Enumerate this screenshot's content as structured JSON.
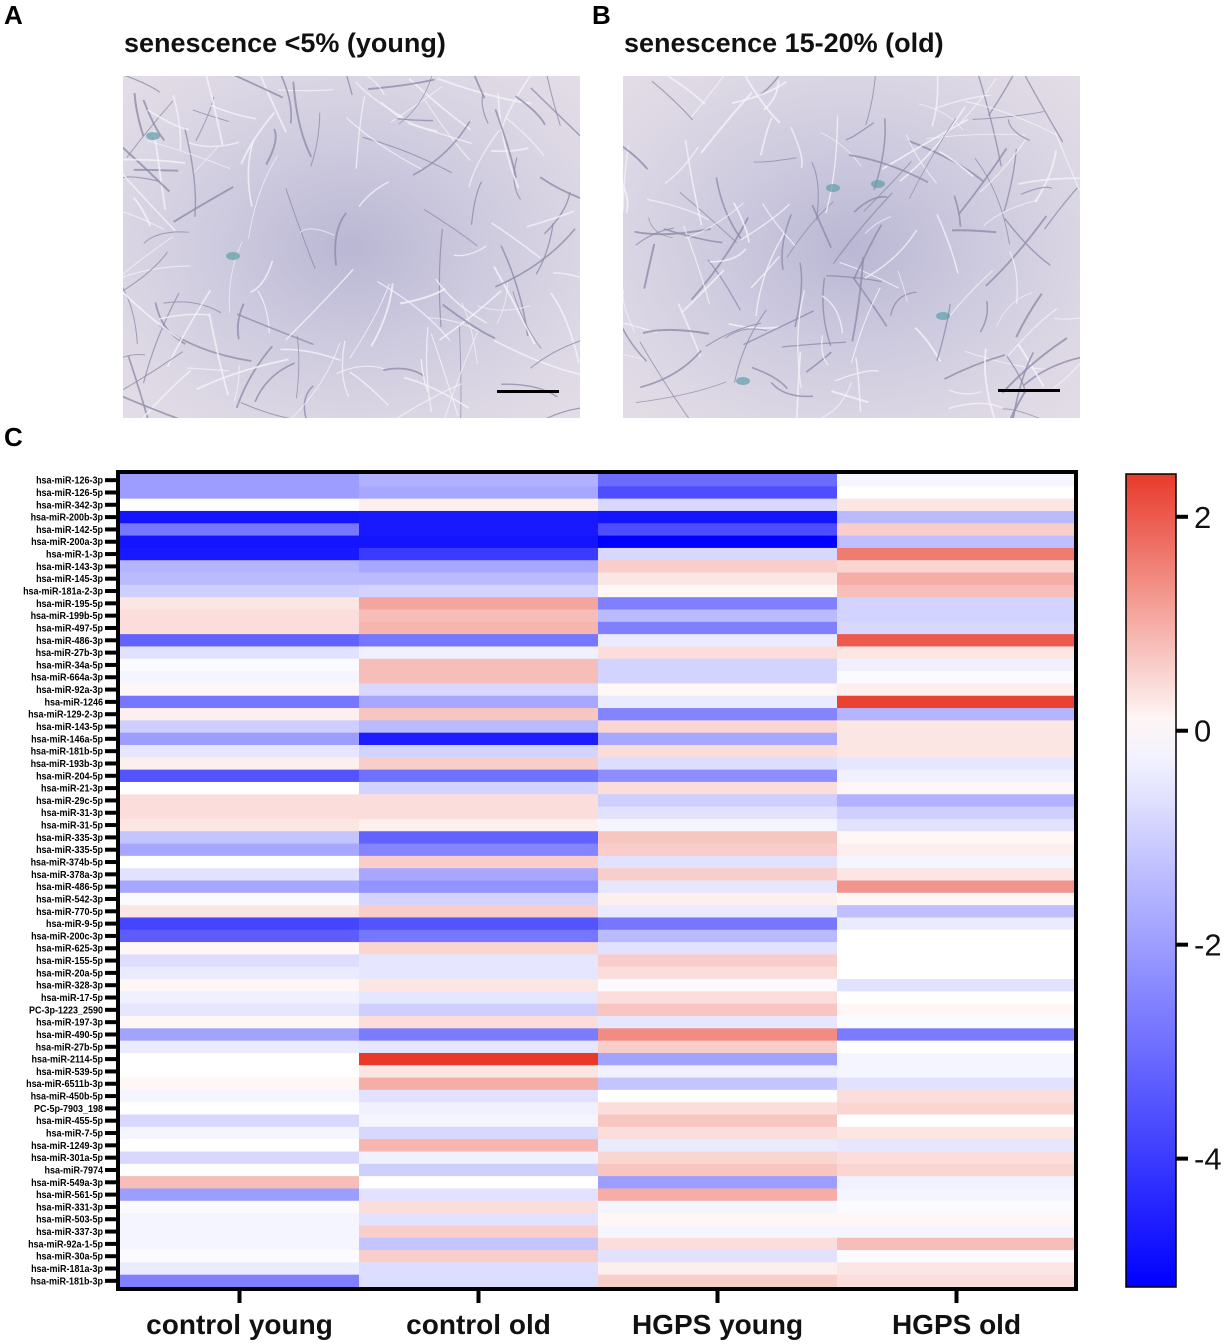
{
  "panels": {
    "a": {
      "letter": "A",
      "title": "senescence <5% (young)"
    },
    "b": {
      "letter": "B",
      "title": "senescence 15-20% (old)"
    },
    "c": {
      "letter": "C"
    }
  },
  "chart_data": {
    "type": "heatmap",
    "columns": [
      "control young",
      "control old",
      "HGPS young",
      "HGPS old"
    ],
    "rows": [
      "hsa-miR-126-3p",
      "hsa-miR-126-5p",
      "hsa-miR-342-3p",
      "hsa-miR-200b-3p",
      "hsa-miR-142-5p",
      "hsa-miR-200a-3p",
      "hsa-miR-1-3p",
      "hsa-miR-143-3p",
      "hsa-miR-145-3p",
      "hsa-miR-181a-2-3p",
      "hsa-miR-195-5p",
      "hsa-miR-199b-5p",
      "hsa-miR-497-5p",
      "hsa-miR-486-3p",
      "hsa-miR-27b-3p",
      "hsa-miR-34a-5p",
      "hsa-miR-664a-3p",
      "hsa-miR-92a-3p",
      "hsa-miR-1246",
      "hsa-miR-129-2-3p",
      "hsa-miR-143-5p",
      "hsa-miR-146a-5p",
      "hsa-miR-181b-5p",
      "hsa-miR-193b-3p",
      "hsa-miR-204-5p",
      "hsa-miR-21-3p",
      "hsa-miR-29c-5p",
      "hsa-miR-31-3p",
      "hsa-miR-31-5p",
      "hsa-miR-335-3p",
      "hsa-miR-335-5p",
      "hsa-miR-374b-5p",
      "hsa-miR-378a-3p",
      "hsa-miR-486-5p",
      "hsa-miR-542-3p",
      "hsa-miR-770-5p",
      "hsa-miR-9-5p",
      "hsa-miR-200c-3p",
      "hsa-miR-625-3p",
      "hsa-miR-155-5p",
      "hsa-miR-20a-5p",
      "hsa-miR-328-3p",
      "hsa-miR-17-5p",
      "PC-3p-1223_2590",
      "hsa-miR-197-3p",
      "hsa-miR-490-5p",
      "hsa-miR-27b-5p",
      "hsa-miR-2114-5p",
      "hsa-miR-539-5p",
      "hsa-miR-6511b-3p",
      "hsa-miR-450b-5p",
      "PC-5p-7903_198",
      "hsa-miR-455-5p",
      "hsa-miR-7-5p",
      "hsa-miR-1249-3p",
      "hsa-miR-301a-5p",
      "hsa-miR-7974",
      "hsa-miR-549a-3p",
      "hsa-miR-561-5p",
      "hsa-miR-331-3p",
      "hsa-miR-503-5p",
      "hsa-miR-337-3p",
      "hsa-miR-92a-1-5p",
      "hsa-miR-30a-5p",
      "hsa-miR-181a-3p",
      "hsa-miR-181b-3p"
    ],
    "values": [
      [
        -2.0,
        -1.6,
        -3.0,
        -0.2
      ],
      [
        -2.0,
        -1.8,
        -3.6,
        0
      ],
      [
        0,
        0.2,
        -0.8,
        0.3
      ],
      [
        -4.8,
        -4.7,
        -4.8,
        -1.4
      ],
      [
        -2.8,
        -4.7,
        -3.6,
        0.6
      ],
      [
        -4.8,
        -4.8,
        -5.2,
        -1.3
      ],
      [
        -4.7,
        -4.0,
        -0.8,
        1.6
      ],
      [
        -1.5,
        -1.8,
        0.6,
        0.5
      ],
      [
        -1.4,
        -1.4,
        0.3,
        1.0
      ],
      [
        -1.0,
        -0.9,
        0.1,
        0.8
      ],
      [
        0.3,
        1.1,
        -2.6,
        -0.9
      ],
      [
        0.4,
        0.8,
        -1.4,
        -0.9
      ],
      [
        0.4,
        0.9,
        -2.6,
        -0.8
      ],
      [
        -3.2,
        -2.8,
        -0.4,
        2.0
      ],
      [
        -0.6,
        -0.3,
        0.4,
        0.3
      ],
      [
        -0.1,
        0.8,
        -0.9,
        -0.3
      ],
      [
        -0.2,
        0.8,
        -0.9,
        -0.1
      ],
      [
        0.1,
        -0.8,
        0.1,
        0.2
      ],
      [
        -2.8,
        -1.8,
        -0.4,
        2.3
      ],
      [
        0.2,
        0.7,
        -2.5,
        -1.5
      ],
      [
        -1.0,
        -1.4,
        0.5,
        0.3
      ],
      [
        -2.0,
        -4.6,
        -1.8,
        0.3
      ],
      [
        -0.5,
        -0.9,
        0.4,
        0.3
      ],
      [
        0.2,
        0.6,
        -0.7,
        -0.5
      ],
      [
        -3.5,
        -2.9,
        -2.3,
        -0.3
      ],
      [
        0,
        -0.9,
        0.4,
        0.1
      ],
      [
        0.4,
        0.4,
        -1.0,
        -1.6
      ],
      [
        0.4,
        0.4,
        -0.6,
        -1.0
      ],
      [
        0.3,
        0.2,
        -0.2,
        -0.6
      ],
      [
        -1.2,
        -3.2,
        0.7,
        0.1
      ],
      [
        -1.8,
        -2.5,
        0.6,
        0.2
      ],
      [
        0,
        0.6,
        -0.6,
        -0.2
      ],
      [
        -0.6,
        -1.8,
        0.6,
        0.3
      ],
      [
        -1.8,
        -2.2,
        -0.5,
        1.3
      ],
      [
        -0.1,
        -0.9,
        0.2,
        0.1
      ],
      [
        0.3,
        0.6,
        -0.4,
        -1.3
      ],
      [
        -3.8,
        -3.5,
        -2.8,
        -0.4
      ],
      [
        -3.3,
        -2.8,
        -1.4,
        0
      ],
      [
        0.1,
        0.5,
        -0.6,
        0
      ],
      [
        -0.7,
        -0.5,
        0.6,
        0
      ],
      [
        -0.4,
        -0.5,
        0.4,
        0
      ],
      [
        0.1,
        0.3,
        -0.1,
        -0.6
      ],
      [
        -0.3,
        -0.5,
        0.4,
        0
      ],
      [
        -0.5,
        -1.0,
        0.7,
        0.1
      ],
      [
        0.1,
        0.4,
        -0.5,
        -0.1
      ],
      [
        -1.9,
        -2.7,
        1.4,
        -2.7
      ],
      [
        -0.4,
        -0.5,
        0.6,
        0
      ],
      [
        0,
        2.4,
        -1.9,
        -0.2
      ],
      [
        0,
        0.3,
        -0.3,
        -0.2
      ],
      [
        0.1,
        1.0,
        -1.2,
        -0.6
      ],
      [
        -0.2,
        -0.6,
        0,
        0.4
      ],
      [
        0,
        -0.3,
        0.4,
        0.5
      ],
      [
        -0.8,
        -0.2,
        0.7,
        0
      ],
      [
        -0.2,
        -0.8,
        0.4,
        0.3
      ],
      [
        0,
        0.9,
        -0.4,
        -0.5
      ],
      [
        -0.8,
        -0.3,
        0.5,
        0.4
      ],
      [
        0,
        -1.0,
        0.7,
        0.5
      ],
      [
        0.8,
        0,
        -2.0,
        -0.3
      ],
      [
        -2.0,
        -0.6,
        1.0,
        -0.2
      ],
      [
        -0.1,
        0.4,
        -0.2,
        -0.1
      ],
      [
        -0.2,
        -0.6,
        0.1,
        0.1
      ],
      [
        -0.2,
        0.6,
        -0.2,
        -0.2
      ],
      [
        -0.2,
        -1.2,
        0.4,
        0.8
      ],
      [
        -0.1,
        0.6,
        -0.6,
        -0.1
      ],
      [
        -0.4,
        -0.7,
        0.2,
        0.3
      ],
      [
        -2.6,
        -0.7,
        0.6,
        0.4
      ]
    ],
    "colorbar": {
      "range": [
        -5.2,
        2.4
      ],
      "ticks": [
        2,
        0,
        -2,
        -4
      ],
      "tick_labels": [
        "2",
        "0",
        "-2",
        "-4"
      ],
      "min_color": "#0000ff",
      "mid_color": "#ffffff",
      "max_color": "#e83a2a"
    }
  }
}
